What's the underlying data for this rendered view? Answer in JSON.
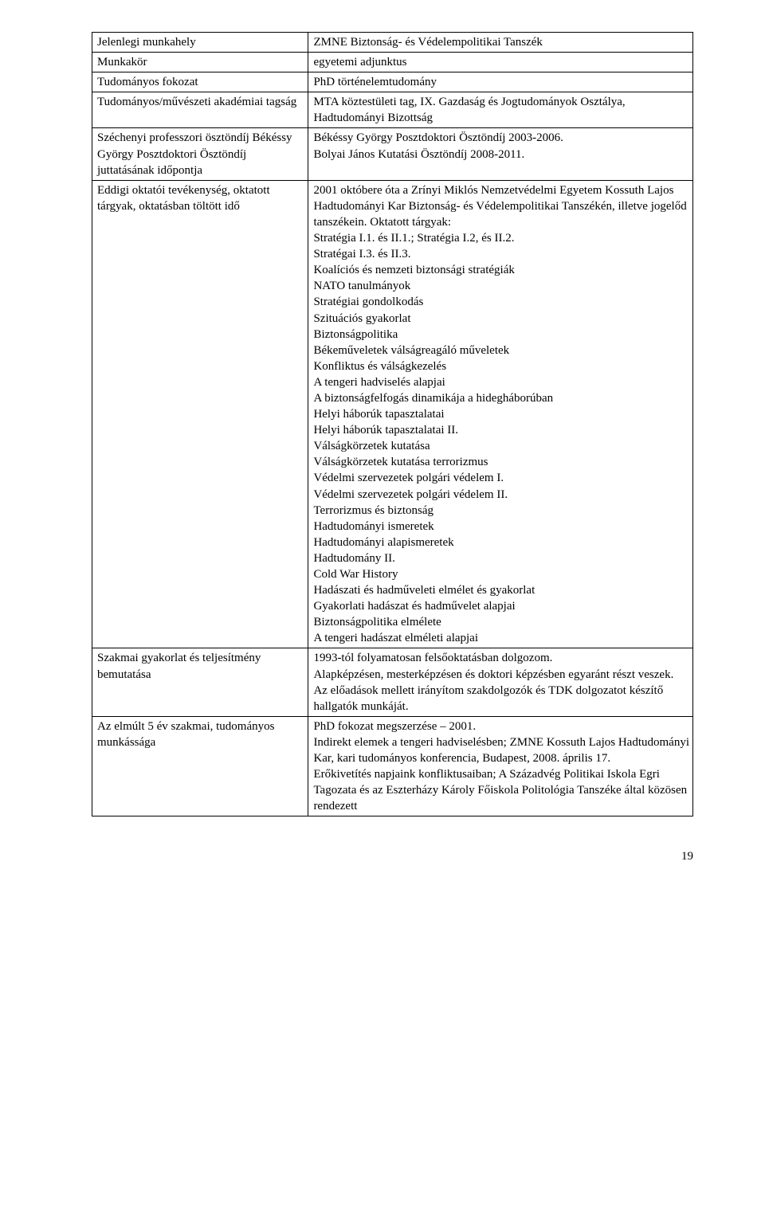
{
  "rows": [
    {
      "left": "Jelenlegi munkahely",
      "right": "ZMNE Biztonság- és Védelempolitikai Tanszék"
    },
    {
      "left": "Munkakör",
      "right": "egyetemi adjunktus"
    },
    {
      "left": "Tudományos fokozat",
      "right": "PhD történelemtudomány"
    },
    {
      "left": "Tudományos/művészeti akadémiai tagság",
      "right": "MTA köztestületi tag, IX. Gazdaság és Jogtudományok Osztálya, Hadtudományi Bizottság"
    },
    {
      "left": "Széchenyi professzori ösztöndíj Békéssy György Posztdoktori Ösztöndíj juttatásának időpontja",
      "right": "Békéssy György Posztdoktori Ösztöndíj 2003-2006.\nBolyai János Kutatási Ösztöndíj 2008-2011."
    },
    {
      "left": "Eddigi oktatói tevékenység, oktatott tárgyak, oktatásban töltött idő",
      "right": "2001 októbere óta a Zrínyi Miklós Nemzetvédelmi Egyetem Kossuth Lajos Hadtudományi Kar Biztonság- és Védelempolitikai Tanszékén, illetve jogelőd tanszékein. Oktatott tárgyak:\nStratégia I.1. és II.1.; Stratégia I.2, és II.2.\nStratégai I.3. és II.3.\nKoalíciós és nemzeti biztonsági stratégiák\nNATO tanulmányok\nStratégiai gondolkodás\nSzituációs gyakorlat\nBiztonságpolitika\nBékeműveletek válságreagáló műveletek\nKonfliktus és válságkezelés\nA tengeri hadviselés alapjai\nA biztonságfelfogás dinamikája a hidegháborúban\nHelyi háborúk tapasztalatai\nHelyi háborúk tapasztalatai II.\nVálságkörzetek kutatása\nVálságkörzetek kutatása terrorizmus\nVédelmi szervezetek polgári védelem I.\nVédelmi szervezetek polgári védelem II.\nTerrorizmus és biztonság\nHadtudományi ismeretek\nHadtudományi alapismeretek\nHadtudomány II.\nCold War History\nHadászati és hadműveleti elmélet és gyakorlat\nGyakorlati hadászat és hadművelet alapjai\nBiztonságpolitika elmélete\nA tengeri hadászat elméleti alapjai"
    },
    {
      "left": "Szakmai gyakorlat és teljesítmény bemutatása",
      "right": "1993-tól folyamatosan felsőoktatásban dolgozom.\nAlapképzésen, mesterképzésen és doktori képzésben egyaránt részt veszek.\nAz előadások mellett irányítom szakdolgozók és TDK dolgozatot készítő hallgatók munkáját."
    },
    {
      "left": "Az elmúlt 5 év szakmai, tudományos munkássága",
      "right": "PhD fokozat megszerzése – 2001.\nIndirekt elemek a tengeri hadviselésben; ZMNE Kossuth Lajos Hadtudományi Kar, kari tudományos konferencia, Budapest, 2008. április 17.\nErőkivetítés napjaink konfliktusaiban; A Századvég Politikai Iskola Egri Tagozata és az Eszterházy Károly Főiskola Politológia Tanszéke által közösen rendezett"
    }
  ],
  "page_number": "19"
}
